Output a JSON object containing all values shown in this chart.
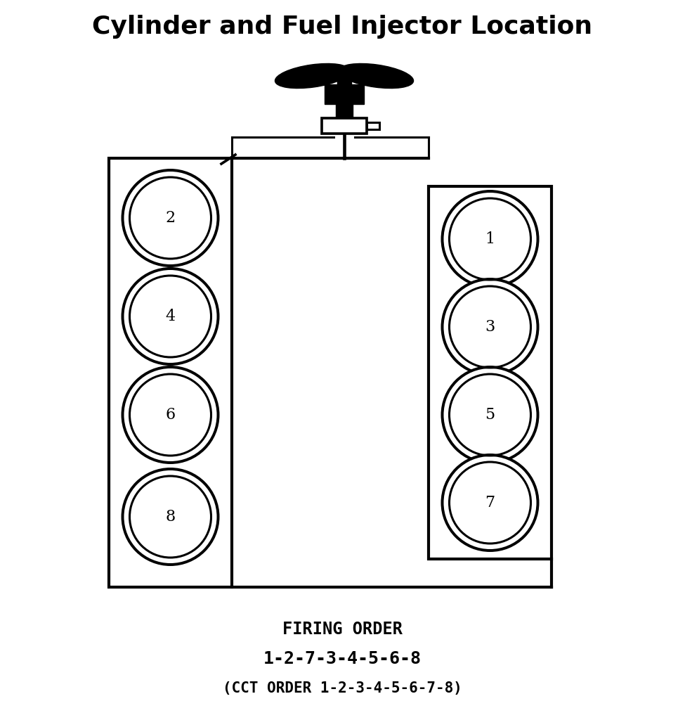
{
  "title": "Cylinder and Fuel Injector Location",
  "title_fontsize": 26,
  "title_fontweight": "bold",
  "bg_color": "#ffffff",
  "line_color": "#000000",
  "firing_order_label": "FIRING ORDER",
  "firing_order_seq": "1-2-7-3-4-5-6-8",
  "cct_order": "(CCT ORDER 1-2-3-4-5-6-7-8)",
  "footer_fontsize": 15,
  "cylinder_num_fontsize": 16
}
